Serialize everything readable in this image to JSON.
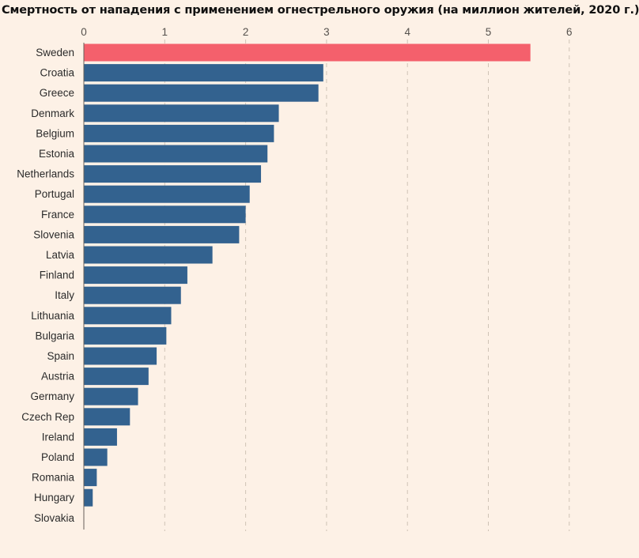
{
  "chart_data": {
    "type": "bar",
    "orientation": "horizontal",
    "title": "Смертность от нападения с применением огнестрельного оружия (на миллион жителей, 2020 г.)",
    "xlabel": "",
    "ylabel": "",
    "xlim": [
      0,
      6
    ],
    "x_ticks": [
      "0",
      "1",
      "2",
      "3",
      "4",
      "5",
      "6"
    ],
    "grid": "vertical dashed",
    "categories": [
      "Sweden",
      "Croatia",
      "Greece",
      "Denmark",
      "Belgium",
      "Estonia",
      "Netherlands",
      "Portugal",
      "France",
      "Slovenia",
      "Latvia",
      "Finland",
      "Italy",
      "Lithuania",
      "Bulgaria",
      "Spain",
      "Austria",
      "Germany",
      "Czech Rep",
      "Ireland",
      "Poland",
      "Romania",
      "Hungary",
      "Slovakia"
    ],
    "values": [
      5.52,
      2.96,
      2.9,
      2.41,
      2.35,
      2.27,
      2.19,
      2.05,
      2.0,
      1.92,
      1.59,
      1.28,
      1.2,
      1.08,
      1.02,
      0.9,
      0.8,
      0.67,
      0.57,
      0.41,
      0.29,
      0.16,
      0.11,
      0.0
    ],
    "colors": {
      "highlight": "#f4606c",
      "bar": "#33628f",
      "background": "#fdf1e6",
      "grid": "#cfc3b6",
      "axis": "#66605a"
    },
    "highlight_category": "Sweden"
  }
}
